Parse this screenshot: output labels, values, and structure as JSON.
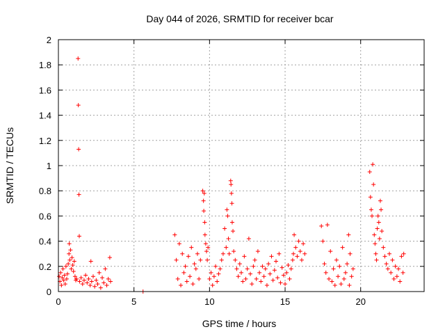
{
  "chart_data": {
    "type": "scatter",
    "title": "Day 044 of 2026, SRMTID for receiver bcar",
    "xlabel": "GPS time / hours",
    "ylabel": "SRMTID / TECUs",
    "xlim": [
      0,
      24.2
    ],
    "ylim": [
      0,
      2
    ],
    "xticks": [
      0,
      5,
      10,
      15,
      20
    ],
    "yticks": [
      0,
      0.2,
      0.4,
      0.6,
      0.8,
      1,
      1.2,
      1.4,
      1.6,
      1.8,
      2
    ],
    "ytick_labels": [
      "0",
      "0.2",
      "0.4",
      "0.6",
      "0.8",
      "1",
      "1.2",
      "1.4",
      "1.6",
      "1.8",
      "2"
    ],
    "grid": true,
    "marker": "+",
    "color": "#ff0000",
    "series": [
      {
        "name": "SRMTID",
        "points": [
          [
            0.05,
            0.12
          ],
          [
            0.1,
            0.08
          ],
          [
            0.15,
            0.15
          ],
          [
            0.2,
            0.05
          ],
          [
            0.25,
            0.11
          ],
          [
            0.3,
            0.18
          ],
          [
            0.35,
            0.09
          ],
          [
            0.4,
            0.13
          ],
          [
            0.45,
            0.06
          ],
          [
            0.5,
            0.2
          ],
          [
            0.55,
            0.1
          ],
          [
            0.6,
            0.14
          ],
          [
            0.65,
            0.22
          ],
          [
            0.7,
            0.3
          ],
          [
            0.72,
            0.38
          ],
          [
            0.75,
            0.25
          ],
          [
            0.8,
            0.33
          ],
          [
            0.85,
            0.18
          ],
          [
            0.9,
            0.27
          ],
          [
            0.95,
            0.21
          ],
          [
            1.0,
            0.16
          ],
          [
            1.05,
            0.24
          ],
          [
            1.1,
            0.12
          ],
          [
            1.15,
            0.09
          ],
          [
            1.2,
            0.1
          ],
          [
            1.3,
            1.85
          ],
          [
            1.32,
            1.48
          ],
          [
            1.34,
            1.13
          ],
          [
            1.36,
            0.77
          ],
          [
            1.38,
            0.44
          ],
          [
            1.4,
            0.08
          ],
          [
            1.5,
            0.11
          ],
          [
            1.6,
            0.06
          ],
          [
            1.7,
            0.09
          ],
          [
            1.8,
            0.13
          ],
          [
            1.9,
            0.07
          ],
          [
            2.0,
            0.1
          ],
          [
            2.1,
            0.05
          ],
          [
            2.15,
            0.24
          ],
          [
            2.2,
            0.08
          ],
          [
            2.3,
            0.12
          ],
          [
            2.4,
            0.04
          ],
          [
            2.5,
            0.09
          ],
          [
            2.6,
            0.06
          ],
          [
            2.7,
            0.15
          ],
          [
            2.8,
            0.03
          ],
          [
            2.9,
            0.11
          ],
          [
            3.0,
            0.07
          ],
          [
            3.1,
            0.18
          ],
          [
            3.2,
            0.05
          ],
          [
            3.3,
            0.1
          ],
          [
            3.4,
            0.27
          ],
          [
            3.45,
            0.08
          ],
          [
            5.6,
            0.0
          ],
          [
            7.7,
            0.45
          ],
          [
            7.8,
            0.25
          ],
          [
            7.9,
            0.1
          ],
          [
            8.0,
            0.38
          ],
          [
            8.1,
            0.05
          ],
          [
            8.2,
            0.3
          ],
          [
            8.3,
            0.15
          ],
          [
            8.4,
            0.2
          ],
          [
            8.5,
            0.08
          ],
          [
            8.6,
            0.28
          ],
          [
            8.7,
            0.12
          ],
          [
            8.8,
            0.35
          ],
          [
            8.9,
            0.06
          ],
          [
            9.0,
            0.22
          ],
          [
            9.1,
            0.18
          ],
          [
            9.2,
            0.3
          ],
          [
            9.3,
            0.1
          ],
          [
            9.4,
            0.25
          ],
          [
            9.55,
            0.8
          ],
          [
            9.6,
            0.72
          ],
          [
            9.62,
            0.64
          ],
          [
            9.65,
            0.78
          ],
          [
            9.68,
            0.55
          ],
          [
            9.7,
            0.45
          ],
          [
            9.75,
            0.38
          ],
          [
            9.8,
            0.32
          ],
          [
            9.85,
            0.25
          ],
          [
            9.9,
            0.35
          ],
          [
            10.0,
            0.1
          ],
          [
            10.1,
            0.15
          ],
          [
            10.2,
            0.05
          ],
          [
            10.3,
            0.12
          ],
          [
            10.4,
            0.2
          ],
          [
            10.5,
            0.08
          ],
          [
            10.6,
            0.14
          ],
          [
            10.7,
            0.18
          ],
          [
            10.8,
            0.25
          ],
          [
            10.9,
            0.3
          ],
          [
            11.0,
            0.5
          ],
          [
            11.1,
            0.35
          ],
          [
            11.15,
            0.65
          ],
          [
            11.2,
            0.6
          ],
          [
            11.25,
            0.42
          ],
          [
            11.3,
            0.3
          ],
          [
            11.4,
            0.88
          ],
          [
            11.42,
            0.85
          ],
          [
            11.45,
            0.78
          ],
          [
            11.48,
            0.7
          ],
          [
            11.5,
            0.55
          ],
          [
            11.55,
            0.48
          ],
          [
            11.6,
            0.32
          ],
          [
            11.7,
            0.25
          ],
          [
            11.8,
            0.18
          ],
          [
            11.9,
            0.12
          ],
          [
            12.0,
            0.22
          ],
          [
            12.1,
            0.15
          ],
          [
            12.2,
            0.08
          ],
          [
            12.3,
            0.28
          ],
          [
            12.4,
            0.1
          ],
          [
            12.5,
            0.18
          ],
          [
            12.6,
            0.42
          ],
          [
            12.7,
            0.14
          ],
          [
            12.8,
            0.06
          ],
          [
            12.9,
            0.2
          ],
          [
            13.0,
            0.25
          ],
          [
            13.1,
            0.1
          ],
          [
            13.2,
            0.32
          ],
          [
            13.3,
            0.15
          ],
          [
            13.4,
            0.08
          ],
          [
            13.5,
            0.2
          ],
          [
            13.6,
            0.12
          ],
          [
            13.7,
            0.18
          ],
          [
            13.8,
            0.05
          ],
          [
            13.9,
            0.22
          ],
          [
            14.0,
            0.14
          ],
          [
            14.1,
            0.28
          ],
          [
            14.2,
            0.09
          ],
          [
            14.3,
            0.17
          ],
          [
            14.4,
            0.24
          ],
          [
            14.5,
            0.11
          ],
          [
            14.6,
            0.3
          ],
          [
            14.7,
            0.07
          ],
          [
            14.8,
            0.19
          ],
          [
            14.9,
            0.13
          ],
          [
            15.0,
            0.06
          ],
          [
            15.1,
            0.15
          ],
          [
            15.2,
            0.21
          ],
          [
            15.3,
            0.1
          ],
          [
            15.4,
            0.18
          ],
          [
            15.5,
            0.25
          ],
          [
            15.55,
            0.3
          ],
          [
            15.6,
            0.45
          ],
          [
            15.7,
            0.35
          ],
          [
            15.8,
            0.28
          ],
          [
            15.9,
            0.4
          ],
          [
            16.0,
            0.32
          ],
          [
            16.1,
            0.25
          ],
          [
            16.2,
            0.38
          ],
          [
            16.3,
            0.3
          ],
          [
            17.4,
            0.52
          ],
          [
            17.5,
            0.4
          ],
          [
            17.6,
            0.22
          ],
          [
            17.7,
            0.15
          ],
          [
            17.8,
            0.53
          ],
          [
            17.9,
            0.1
          ],
          [
            18.0,
            0.32
          ],
          [
            18.1,
            0.08
          ],
          [
            18.2,
            0.18
          ],
          [
            18.3,
            0.05
          ],
          [
            18.4,
            0.25
          ],
          [
            18.5,
            0.12
          ],
          [
            18.6,
            0.2
          ],
          [
            18.7,
            0.06
          ],
          [
            18.8,
            0.35
          ],
          [
            18.9,
            0.1
          ],
          [
            19.0,
            0.15
          ],
          [
            19.1,
            0.22
          ],
          [
            19.2,
            0.45
          ],
          [
            19.25,
            0.05
          ],
          [
            19.3,
            0.3
          ],
          [
            19.4,
            0.12
          ],
          [
            19.5,
            0.18
          ],
          [
            20.6,
            0.95
          ],
          [
            20.65,
            0.75
          ],
          [
            20.7,
            0.65
          ],
          [
            20.75,
            0.6
          ],
          [
            20.8,
            1.01
          ],
          [
            20.85,
            0.85
          ],
          [
            20.9,
            0.45
          ],
          [
            20.95,
            0.38
          ],
          [
            21.0,
            0.3
          ],
          [
            21.05,
            0.25
          ],
          [
            21.1,
            0.5
          ],
          [
            21.15,
            0.6
          ],
          [
            21.2,
            0.55
          ],
          [
            21.25,
            0.42
          ],
          [
            21.3,
            0.72
          ],
          [
            21.35,
            0.65
          ],
          [
            21.4,
            0.48
          ],
          [
            21.5,
            0.35
          ],
          [
            21.6,
            0.28
          ],
          [
            21.7,
            0.22
          ],
          [
            21.8,
            0.18
          ],
          [
            21.9,
            0.3
          ],
          [
            22.0,
            0.15
          ],
          [
            22.1,
            0.25
          ],
          [
            22.2,
            0.1
          ],
          [
            22.3,
            0.2
          ],
          [
            22.4,
            0.12
          ],
          [
            22.5,
            0.18
          ],
          [
            22.6,
            0.08
          ],
          [
            22.7,
            0.28
          ],
          [
            22.8,
            0.15
          ],
          [
            22.85,
            0.3
          ]
        ]
      }
    ]
  }
}
